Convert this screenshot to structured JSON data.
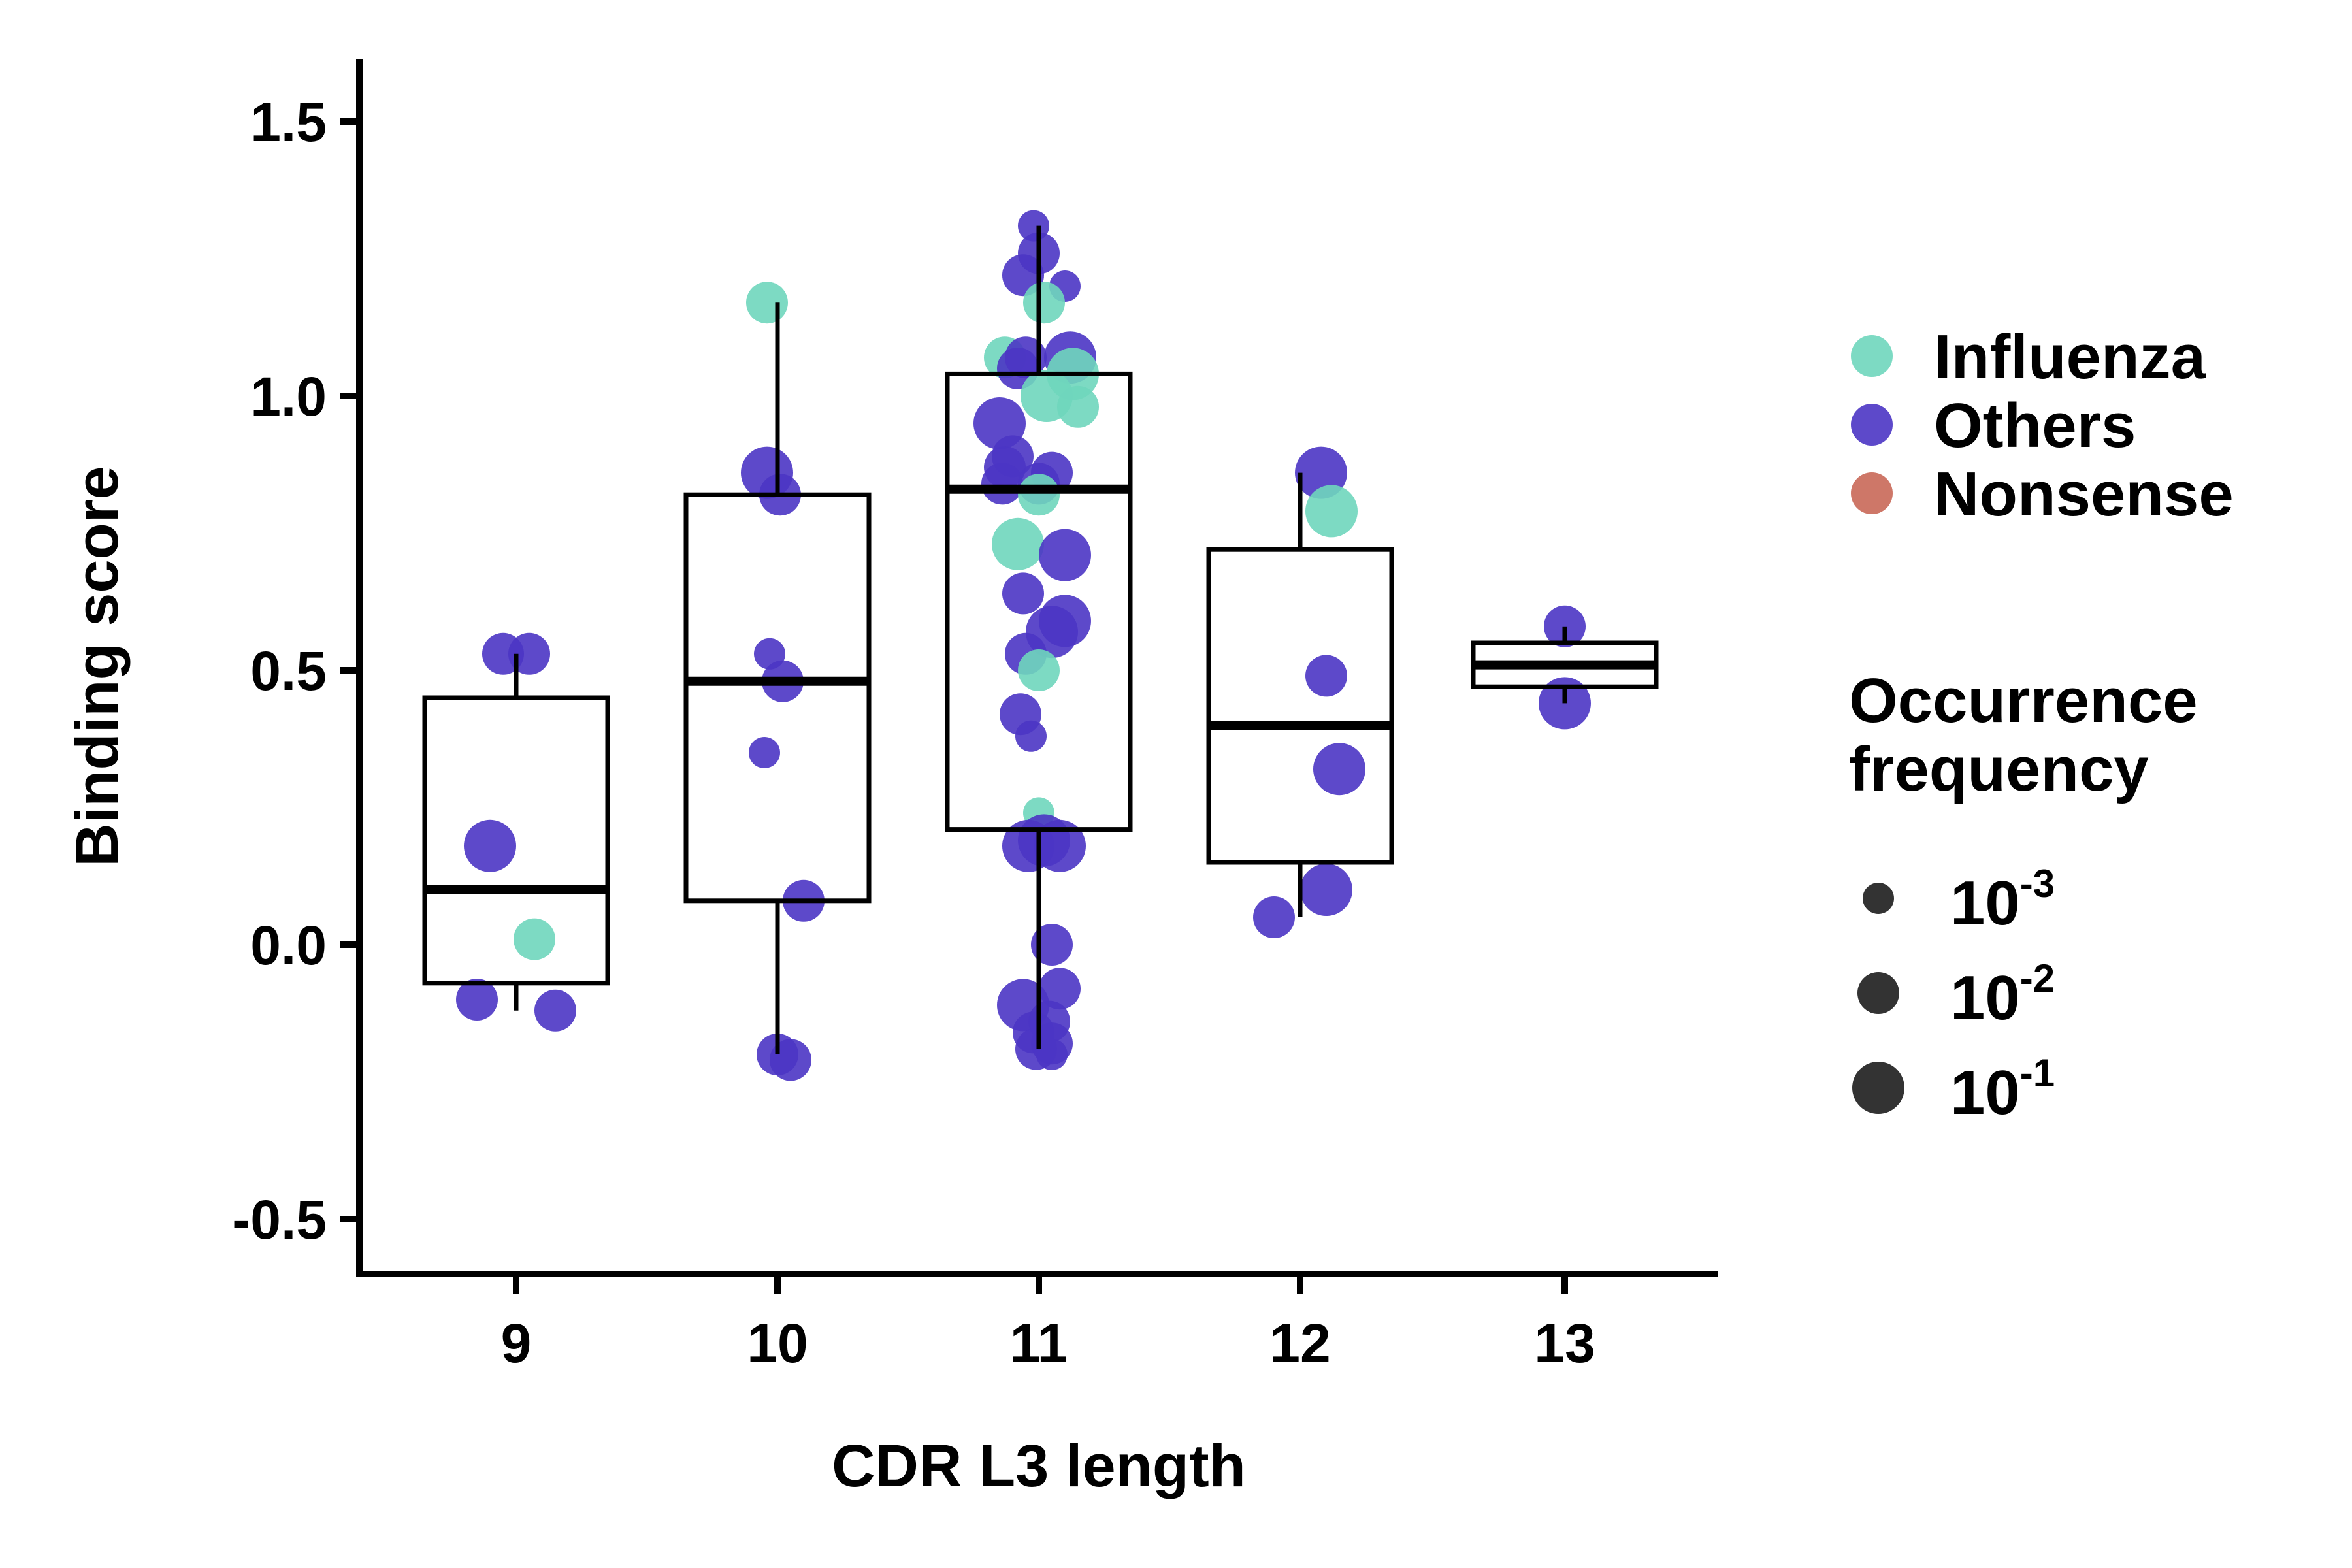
{
  "chart_data": {
    "type": "box",
    "title": "",
    "xlabel": "CDR L3 length",
    "ylabel": "Binding score",
    "categories": [
      "9",
      "10",
      "11",
      "12",
      "13"
    ],
    "ylim": [
      -0.6,
      1.6
    ],
    "yticks": [
      -0.5,
      0.0,
      0.5,
      1.0,
      1.5
    ],
    "ytick_labels": [
      "-0.5",
      "0.0",
      "0.5",
      "1.0",
      "1.5"
    ],
    "grid": false,
    "legend_position": "right",
    "boxes": [
      {
        "category": "9",
        "whisker_low": -0.12,
        "q1": -0.07,
        "median": 0.1,
        "q3": 0.45,
        "whisker_high": 0.53
      },
      {
        "category": "10",
        "whisker_low": -0.2,
        "q1": 0.08,
        "median": 0.48,
        "q3": 0.82,
        "whisker_high": 1.17
      },
      {
        "category": "11",
        "whisker_low": -0.19,
        "q1": 0.21,
        "median": 0.83,
        "q3": 1.04,
        "whisker_high": 1.31
      },
      {
        "category": "12",
        "whisker_low": 0.05,
        "q1": 0.15,
        "median": 0.4,
        "q3": 0.72,
        "whisker_high": 0.86
      },
      {
        "category": "13",
        "whisker_low": 0.44,
        "q1": 0.47,
        "median": 0.51,
        "q3": 0.55,
        "whisker_high": 0.58
      }
    ],
    "series": [
      {
        "name": "Influenza",
        "color": "#6fd6bd"
      },
      {
        "name": "Others",
        "color": "#4b35c4"
      },
      {
        "name": "Nonsense",
        "color": "#c96858"
      }
    ],
    "points": [
      {
        "x": 9,
        "jitter": -0.05,
        "y": 0.53,
        "series": "Others",
        "freq": -2
      },
      {
        "x": 9,
        "jitter": 0.05,
        "y": 0.53,
        "series": "Others",
        "freq": -2
      },
      {
        "x": 9,
        "jitter": -0.1,
        "y": 0.18,
        "series": "Others",
        "freq": -1
      },
      {
        "x": 9,
        "jitter": 0.07,
        "y": 0.01,
        "series": "Influenza",
        "freq": -2
      },
      {
        "x": 9,
        "jitter": -0.15,
        "y": -0.1,
        "series": "Others",
        "freq": -2
      },
      {
        "x": 9,
        "jitter": 0.15,
        "y": -0.12,
        "series": "Others",
        "freq": -2
      },
      {
        "x": 10,
        "jitter": -0.04,
        "y": 1.17,
        "series": "Influenza",
        "freq": -2
      },
      {
        "x": 10,
        "jitter": -0.04,
        "y": 0.86,
        "series": "Others",
        "freq": -1
      },
      {
        "x": 10,
        "jitter": 0.01,
        "y": 0.82,
        "series": "Others",
        "freq": -2
      },
      {
        "x": 10,
        "jitter": -0.03,
        "y": 0.53,
        "series": "Others",
        "freq": -3
      },
      {
        "x": 10,
        "jitter": 0.02,
        "y": 0.48,
        "series": "Others",
        "freq": -2
      },
      {
        "x": 10,
        "jitter": -0.05,
        "y": 0.35,
        "series": "Others",
        "freq": -3
      },
      {
        "x": 10,
        "jitter": 0.1,
        "y": 0.08,
        "series": "Others",
        "freq": -2
      },
      {
        "x": 10,
        "jitter": 0.0,
        "y": -0.2,
        "series": "Others",
        "freq": -2
      },
      {
        "x": 10,
        "jitter": 0.05,
        "y": -0.21,
        "series": "Others",
        "freq": -2
      },
      {
        "x": 11,
        "jitter": -0.02,
        "y": 1.31,
        "series": "Others",
        "freq": -3
      },
      {
        "x": 11,
        "jitter": 0.0,
        "y": 1.26,
        "series": "Others",
        "freq": -2
      },
      {
        "x": 11,
        "jitter": -0.06,
        "y": 1.22,
        "series": "Others",
        "freq": -2
      },
      {
        "x": 11,
        "jitter": 0.1,
        "y": 1.2,
        "series": "Others",
        "freq": -3
      },
      {
        "x": 11,
        "jitter": 0.02,
        "y": 1.17,
        "series": "Influenza",
        "freq": -2
      },
      {
        "x": 11,
        "jitter": -0.13,
        "y": 1.07,
        "series": "Influenza",
        "freq": -2
      },
      {
        "x": 11,
        "jitter": -0.05,
        "y": 1.07,
        "series": "Others",
        "freq": -2
      },
      {
        "x": 11,
        "jitter": 0.12,
        "y": 1.07,
        "series": "Others",
        "freq": -1
      },
      {
        "x": 11,
        "jitter": -0.08,
        "y": 1.05,
        "series": "Others",
        "freq": -2
      },
      {
        "x": 11,
        "jitter": 0.13,
        "y": 1.04,
        "series": "Influenza",
        "freq": -1
      },
      {
        "x": 11,
        "jitter": 0.03,
        "y": 1.0,
        "series": "Influenza",
        "freq": -1
      },
      {
        "x": 11,
        "jitter": 0.15,
        "y": 0.98,
        "series": "Influenza",
        "freq": -2
      },
      {
        "x": 11,
        "jitter": -0.15,
        "y": 0.95,
        "series": "Others",
        "freq": -1
      },
      {
        "x": 11,
        "jitter": -0.1,
        "y": 0.89,
        "series": "Others",
        "freq": -2
      },
      {
        "x": 11,
        "jitter": -0.13,
        "y": 0.87,
        "series": "Others",
        "freq": -2
      },
      {
        "x": 11,
        "jitter": 0.05,
        "y": 0.86,
        "series": "Others",
        "freq": -2
      },
      {
        "x": 11,
        "jitter": -0.14,
        "y": 0.84,
        "series": "Others",
        "freq": -2
      },
      {
        "x": 11,
        "jitter": 0.0,
        "y": 0.84,
        "series": "Others",
        "freq": -2
      },
      {
        "x": 11,
        "jitter": 0.0,
        "y": 0.82,
        "series": "Influenza",
        "freq": -2
      },
      {
        "x": 11,
        "jitter": -0.08,
        "y": 0.73,
        "series": "Influenza",
        "freq": -1
      },
      {
        "x": 11,
        "jitter": 0.1,
        "y": 0.71,
        "series": "Others",
        "freq": -1
      },
      {
        "x": 11,
        "jitter": -0.06,
        "y": 0.64,
        "series": "Others",
        "freq": -2
      },
      {
        "x": 11,
        "jitter": 0.1,
        "y": 0.59,
        "series": "Others",
        "freq": -1
      },
      {
        "x": 11,
        "jitter": 0.05,
        "y": 0.57,
        "series": "Others",
        "freq": -1
      },
      {
        "x": 11,
        "jitter": -0.05,
        "y": 0.53,
        "series": "Others",
        "freq": -2
      },
      {
        "x": 11,
        "jitter": 0.0,
        "y": 0.5,
        "series": "Influenza",
        "freq": -2
      },
      {
        "x": 11,
        "jitter": -0.07,
        "y": 0.42,
        "series": "Others",
        "freq": -2
      },
      {
        "x": 11,
        "jitter": -0.03,
        "y": 0.38,
        "series": "Others",
        "freq": -3
      },
      {
        "x": 11,
        "jitter": 0.0,
        "y": 0.24,
        "series": "Influenza",
        "freq": -3
      },
      {
        "x": 11,
        "jitter": 0.02,
        "y": 0.19,
        "series": "Others",
        "freq": -1
      },
      {
        "x": 11,
        "jitter": -0.04,
        "y": 0.18,
        "series": "Others",
        "freq": -1
      },
      {
        "x": 11,
        "jitter": 0.08,
        "y": 0.18,
        "series": "Others",
        "freq": -1
      },
      {
        "x": 11,
        "jitter": 0.05,
        "y": 0.0,
        "series": "Others",
        "freq": -2
      },
      {
        "x": 11,
        "jitter": 0.08,
        "y": -0.08,
        "series": "Others",
        "freq": -2
      },
      {
        "x": 11,
        "jitter": -0.06,
        "y": -0.11,
        "series": "Others",
        "freq": -1
      },
      {
        "x": 11,
        "jitter": 0.04,
        "y": -0.14,
        "series": "Others",
        "freq": -2
      },
      {
        "x": 11,
        "jitter": -0.02,
        "y": -0.16,
        "series": "Others",
        "freq": -2
      },
      {
        "x": 11,
        "jitter": 0.05,
        "y": -0.18,
        "series": "Others",
        "freq": -2
      },
      {
        "x": 11,
        "jitter": -0.01,
        "y": -0.19,
        "series": "Others",
        "freq": -2
      },
      {
        "x": 11,
        "jitter": 0.05,
        "y": -0.2,
        "series": "Others",
        "freq": -3
      },
      {
        "x": 12,
        "jitter": 0.08,
        "y": 0.86,
        "series": "Others",
        "freq": -1
      },
      {
        "x": 12,
        "jitter": 0.12,
        "y": 0.79,
        "series": "Influenza",
        "freq": -1
      },
      {
        "x": 12,
        "jitter": 0.1,
        "y": 0.49,
        "series": "Others",
        "freq": -2
      },
      {
        "x": 12,
        "jitter": 0.15,
        "y": 0.32,
        "series": "Others",
        "freq": -1
      },
      {
        "x": 12,
        "jitter": 0.1,
        "y": 0.1,
        "series": "Others",
        "freq": -1
      },
      {
        "x": 12,
        "jitter": -0.1,
        "y": 0.05,
        "series": "Others",
        "freq": -2
      },
      {
        "x": 13,
        "jitter": 0.0,
        "y": 0.58,
        "series": "Others",
        "freq": -2
      },
      {
        "x": 13,
        "jitter": 0.0,
        "y": 0.44,
        "series": "Others",
        "freq": -1
      }
    ],
    "size_legend": {
      "title_lines": [
        "Occurrence",
        "frequency"
      ],
      "entries": [
        {
          "base": "10",
          "exp": "-3",
          "freq": -3
        },
        {
          "base": "10",
          "exp": "-2",
          "freq": -2
        },
        {
          "base": "10",
          "exp": "-1",
          "freq": -1
        }
      ]
    }
  }
}
